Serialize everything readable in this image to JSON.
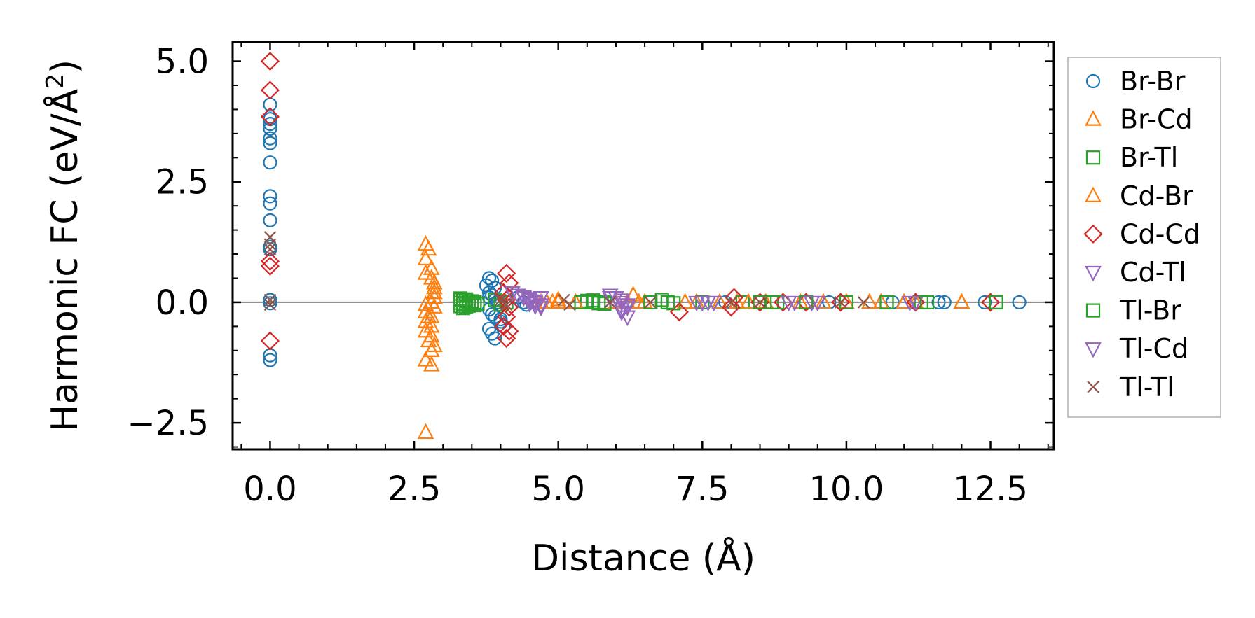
{
  "chart_data": {
    "type": "scatter",
    "title": "",
    "xlabel": "Distance (Å)",
    "ylabel": "Harmonic FC (eV/Å²)",
    "ylabel_main": "Harmonic FC (eV/Å",
    "ylabel_sup": "2",
    "ylabel_close": ")",
    "xlim": [
      -0.65,
      13.6
    ],
    "ylim": [
      -3.05,
      5.4
    ],
    "xticks": [
      0.0,
      2.5,
      5.0,
      7.5,
      10.0,
      12.5
    ],
    "xtick_labels": [
      "0.0",
      "2.5",
      "5.0",
      "7.5",
      "10.0",
      "12.5"
    ],
    "yticks": [
      -2.5,
      0.0,
      2.5,
      5.0
    ],
    "ytick_labels": [
      "−2.5",
      "0.0",
      "2.5",
      "5.0"
    ],
    "zero_line": true,
    "legend_position": "outside-right",
    "series": [
      {
        "name": "Br-Br",
        "marker": "circle",
        "color": "#1f77b4",
        "x": [
          0,
          0,
          0,
          0,
          0,
          0,
          0,
          0,
          0,
          0,
          0,
          0,
          0,
          0,
          0,
          0,
          3.8,
          3.85,
          3.75,
          3.9,
          3.8,
          3.85,
          3.8,
          3.9,
          3.95,
          4.0,
          3.8,
          3.85,
          3.9,
          4.0,
          4.05,
          3.8,
          3.85,
          3.9,
          4.0,
          4.3,
          4.4,
          4.45,
          7.9,
          9.7,
          10.8,
          11.6,
          11.7,
          12.4,
          13.0
        ],
        "y": [
          4.1,
          3.8,
          3.7,
          3.6,
          3.4,
          3.3,
          2.9,
          2.2,
          2.05,
          1.7,
          1.15,
          1.1,
          0.05,
          -0.02,
          -1.1,
          -1.2,
          0.5,
          0.45,
          0.35,
          0.3,
          0.2,
          0.15,
          0.1,
          0.05,
          0,
          -0.05,
          -0.15,
          -0.25,
          -0.3,
          -0.4,
          -0.5,
          -0.55,
          -0.65,
          -0.75,
          -0.35,
          0.1,
          0,
          -0.05,
          0,
          0,
          0,
          0,
          0,
          0,
          0
        ]
      },
      {
        "name": "Br-Cd",
        "marker": "triangle-up",
        "color": "#ff7f0e",
        "x": [
          2.7,
          2.7,
          2.7,
          2.7,
          2.7,
          2.75,
          2.8,
          2.8,
          2.85,
          2.85,
          2.85,
          2.85,
          2.85,
          2.8,
          2.8,
          2.8,
          2.85,
          2.8,
          4.7,
          4.8,
          4.9,
          5.0,
          6.3,
          6.5,
          7.2,
          7.4,
          8.1,
          8.6,
          9.2,
          10.0,
          10.6,
          11.2,
          12.0,
          12.0
        ],
        "y": [
          1.2,
          0.9,
          0.6,
          -0.05,
          -1.2,
          1.1,
          0.7,
          0.5,
          0.4,
          0.3,
          0.2,
          0.1,
          -0.1,
          -0.3,
          -0.5,
          -0.7,
          -0.9,
          -1.0,
          0,
          0,
          0,
          0.05,
          0.15,
          0,
          0,
          0,
          0,
          0,
          0,
          0,
          0,
          0,
          0,
          0
        ]
      },
      {
        "name": "Br-Tl",
        "marker": "square",
        "color": "#2ca02c",
        "x": [
          3.3,
          3.35,
          3.4,
          3.45,
          3.5,
          3.55,
          3.3,
          3.4,
          3.5,
          3.35,
          3.45,
          3.55,
          3.3,
          3.4,
          3.9,
          4.0,
          4.1,
          5.5,
          5.6,
          5.7,
          5.8,
          6.9,
          7.0,
          7.5,
          8.2,
          8.7,
          9.3,
          10.0,
          10.7,
          11.3,
          12.6
        ],
        "y": [
          0.05,
          0.04,
          0.03,
          0.02,
          0.01,
          0,
          -0.01,
          -0.02,
          -0.03,
          -0.04,
          -0.05,
          -0.06,
          -0.08,
          -0.1,
          0.05,
          -0.05,
          0,
          0.03,
          0,
          -0.02,
          0,
          0,
          -0.02,
          0,
          0,
          0,
          0,
          0,
          0,
          0,
          0
        ]
      },
      {
        "name": "Cd-Br",
        "marker": "triangle-up",
        "color": "#ff7f0e",
        "x": [
          2.7,
          2.7,
          2.7,
          2.75,
          2.8,
          2.8,
          2.85,
          2.8,
          2.75,
          2.7,
          4.8,
          5.0,
          5.3,
          6.0,
          6.2,
          6.4,
          7.8,
          8.3,
          9.6,
          10.4,
          11.0,
          12.0
        ],
        "y": [
          -0.2,
          -0.4,
          -0.6,
          -0.8,
          -1.0,
          -1.3,
          0.2,
          0.0,
          -0.3,
          -2.7,
          0,
          0,
          0,
          0,
          0,
          0,
          0,
          0,
          0,
          0,
          0,
          0
        ]
      },
      {
        "name": "Cd-Cd",
        "marker": "diamond",
        "color": "#d62728",
        "x": [
          0,
          0,
          0,
          0,
          0,
          0,
          4.1,
          4.15,
          4.05,
          4.1,
          4.15,
          4.1,
          4.05,
          4.15,
          4.1,
          7.1,
          8.0,
          8.05,
          8.5,
          8.9,
          9.3,
          9.9,
          11.2,
          12.5
        ],
        "y": [
          5.0,
          4.4,
          3.85,
          0.85,
          0.75,
          -0.8,
          0.6,
          0.4,
          0.2,
          0.05,
          -0.1,
          -0.3,
          -0.5,
          -0.6,
          -0.75,
          -0.2,
          -0.1,
          0.1,
          0,
          0,
          0,
          0,
          0,
          0
        ]
      },
      {
        "name": "Cd-Tl",
        "marker": "triangle-down",
        "color": "#9467bd",
        "x": [
          4.2,
          4.3,
          4.4,
          4.5,
          4.6,
          4.7,
          4.7,
          5.9,
          6.0,
          6.1,
          6.2,
          6.1,
          6.2,
          7.4,
          7.6,
          9.1,
          9.5,
          11.2
        ],
        "y": [
          0.2,
          0.15,
          0.1,
          0.05,
          0,
          -0.05,
          -0.1,
          0.15,
          0.1,
          0,
          -0.1,
          -0.2,
          -0.3,
          0,
          0,
          0,
          0,
          0
        ]
      },
      {
        "name": "Tl-Br",
        "marker": "square",
        "color": "#2ca02c",
        "x": [
          3.3,
          3.4,
          3.5,
          3.6,
          3.45,
          3.35,
          5.4,
          5.6,
          5.8,
          6.6,
          6.8,
          6.9,
          8.5,
          8.8,
          9.3,
          10.7,
          11.4,
          12.6
        ],
        "y": [
          0.08,
          0.06,
          0.02,
          -0.03,
          -0.07,
          -0.12,
          0,
          0.04,
          -0.03,
          0,
          0.05,
          0,
          0,
          0,
          0,
          0,
          0,
          0
        ]
      },
      {
        "name": "Tl-Cd",
        "marker": "triangle-down",
        "color": "#9467bd",
        "x": [
          4.4,
          4.5,
          4.6,
          4.5,
          4.6,
          4.7,
          5.9,
          6.1,
          6.2,
          6.1,
          7.5,
          7.7,
          9.0,
          9.4,
          11.1
        ],
        "y": [
          0.12,
          0.08,
          0.03,
          -0.02,
          -0.07,
          0.1,
          0.1,
          0.05,
          -0.05,
          -0.15,
          0,
          0,
          0,
          0,
          0
        ]
      },
      {
        "name": "Tl-Tl",
        "marker": "x",
        "color": "#8c564b",
        "x": [
          0,
          0,
          0,
          0,
          0,
          4.0,
          4.1,
          5.1,
          5.2,
          5.9,
          6.6,
          8.0,
          8.5,
          9.9,
          10.3
        ],
        "y": [
          1.35,
          1.2,
          1.1,
          0.05,
          -0.05,
          0.05,
          -0.05,
          0.05,
          -0.05,
          0,
          0,
          0,
          0,
          0,
          0
        ]
      }
    ]
  }
}
